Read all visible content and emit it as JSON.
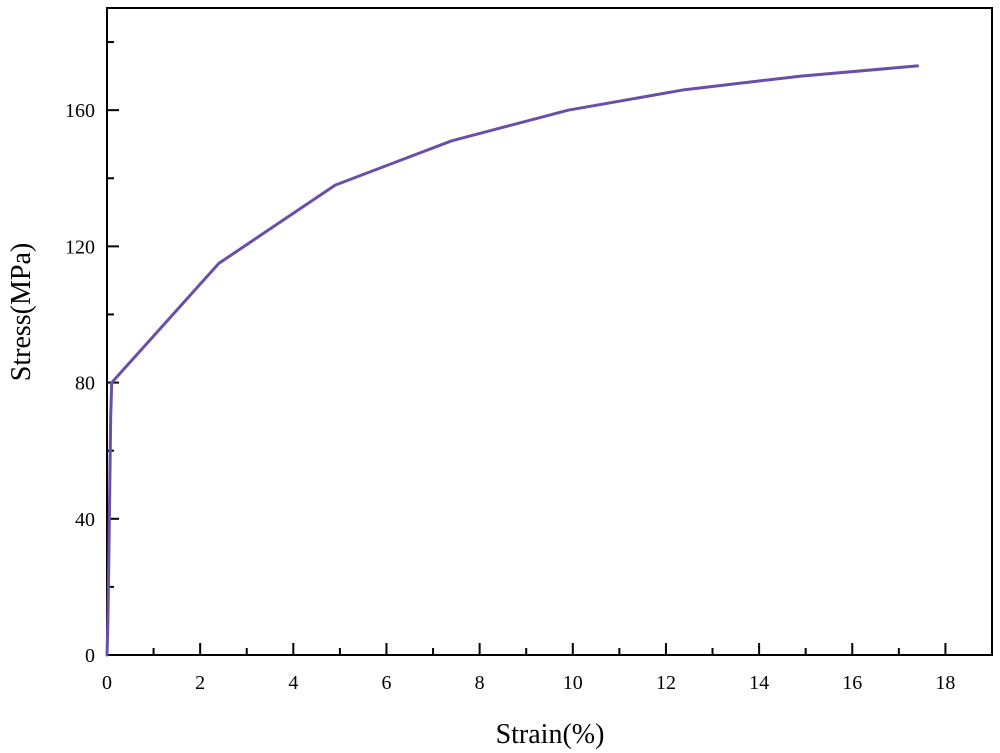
{
  "chart_data": {
    "type": "line",
    "title": "",
    "xlabel": "Strain(%)",
    "ylabel": "Stress(MPa)",
    "xlim": [
      0,
      19
    ],
    "ylim": [
      0,
      190
    ],
    "x_ticks": [
      0,
      2,
      4,
      6,
      8,
      10,
      12,
      14,
      16,
      18
    ],
    "x_tick_labels": [
      "0",
      "2",
      "4",
      "6",
      "8",
      "10",
      "12",
      "14",
      "16",
      "18"
    ],
    "y_ticks": [
      0,
      40,
      80,
      120,
      160
    ],
    "y_tick_labels": [
      "0",
      "40",
      "80",
      "120",
      "160"
    ],
    "grid": false,
    "line_color": "#6a4faa",
    "series": [
      {
        "x": [
          0,
          0.02,
          0.04,
          0.06,
          0.08,
          0.1,
          2.4,
          4.9,
          7.4,
          9.9,
          12.4,
          14.9,
          17.4
        ],
        "y": [
          0,
          10,
          30,
          50,
          70,
          80,
          115,
          138,
          151,
          160,
          166,
          170,
          173
        ]
      }
    ]
  }
}
